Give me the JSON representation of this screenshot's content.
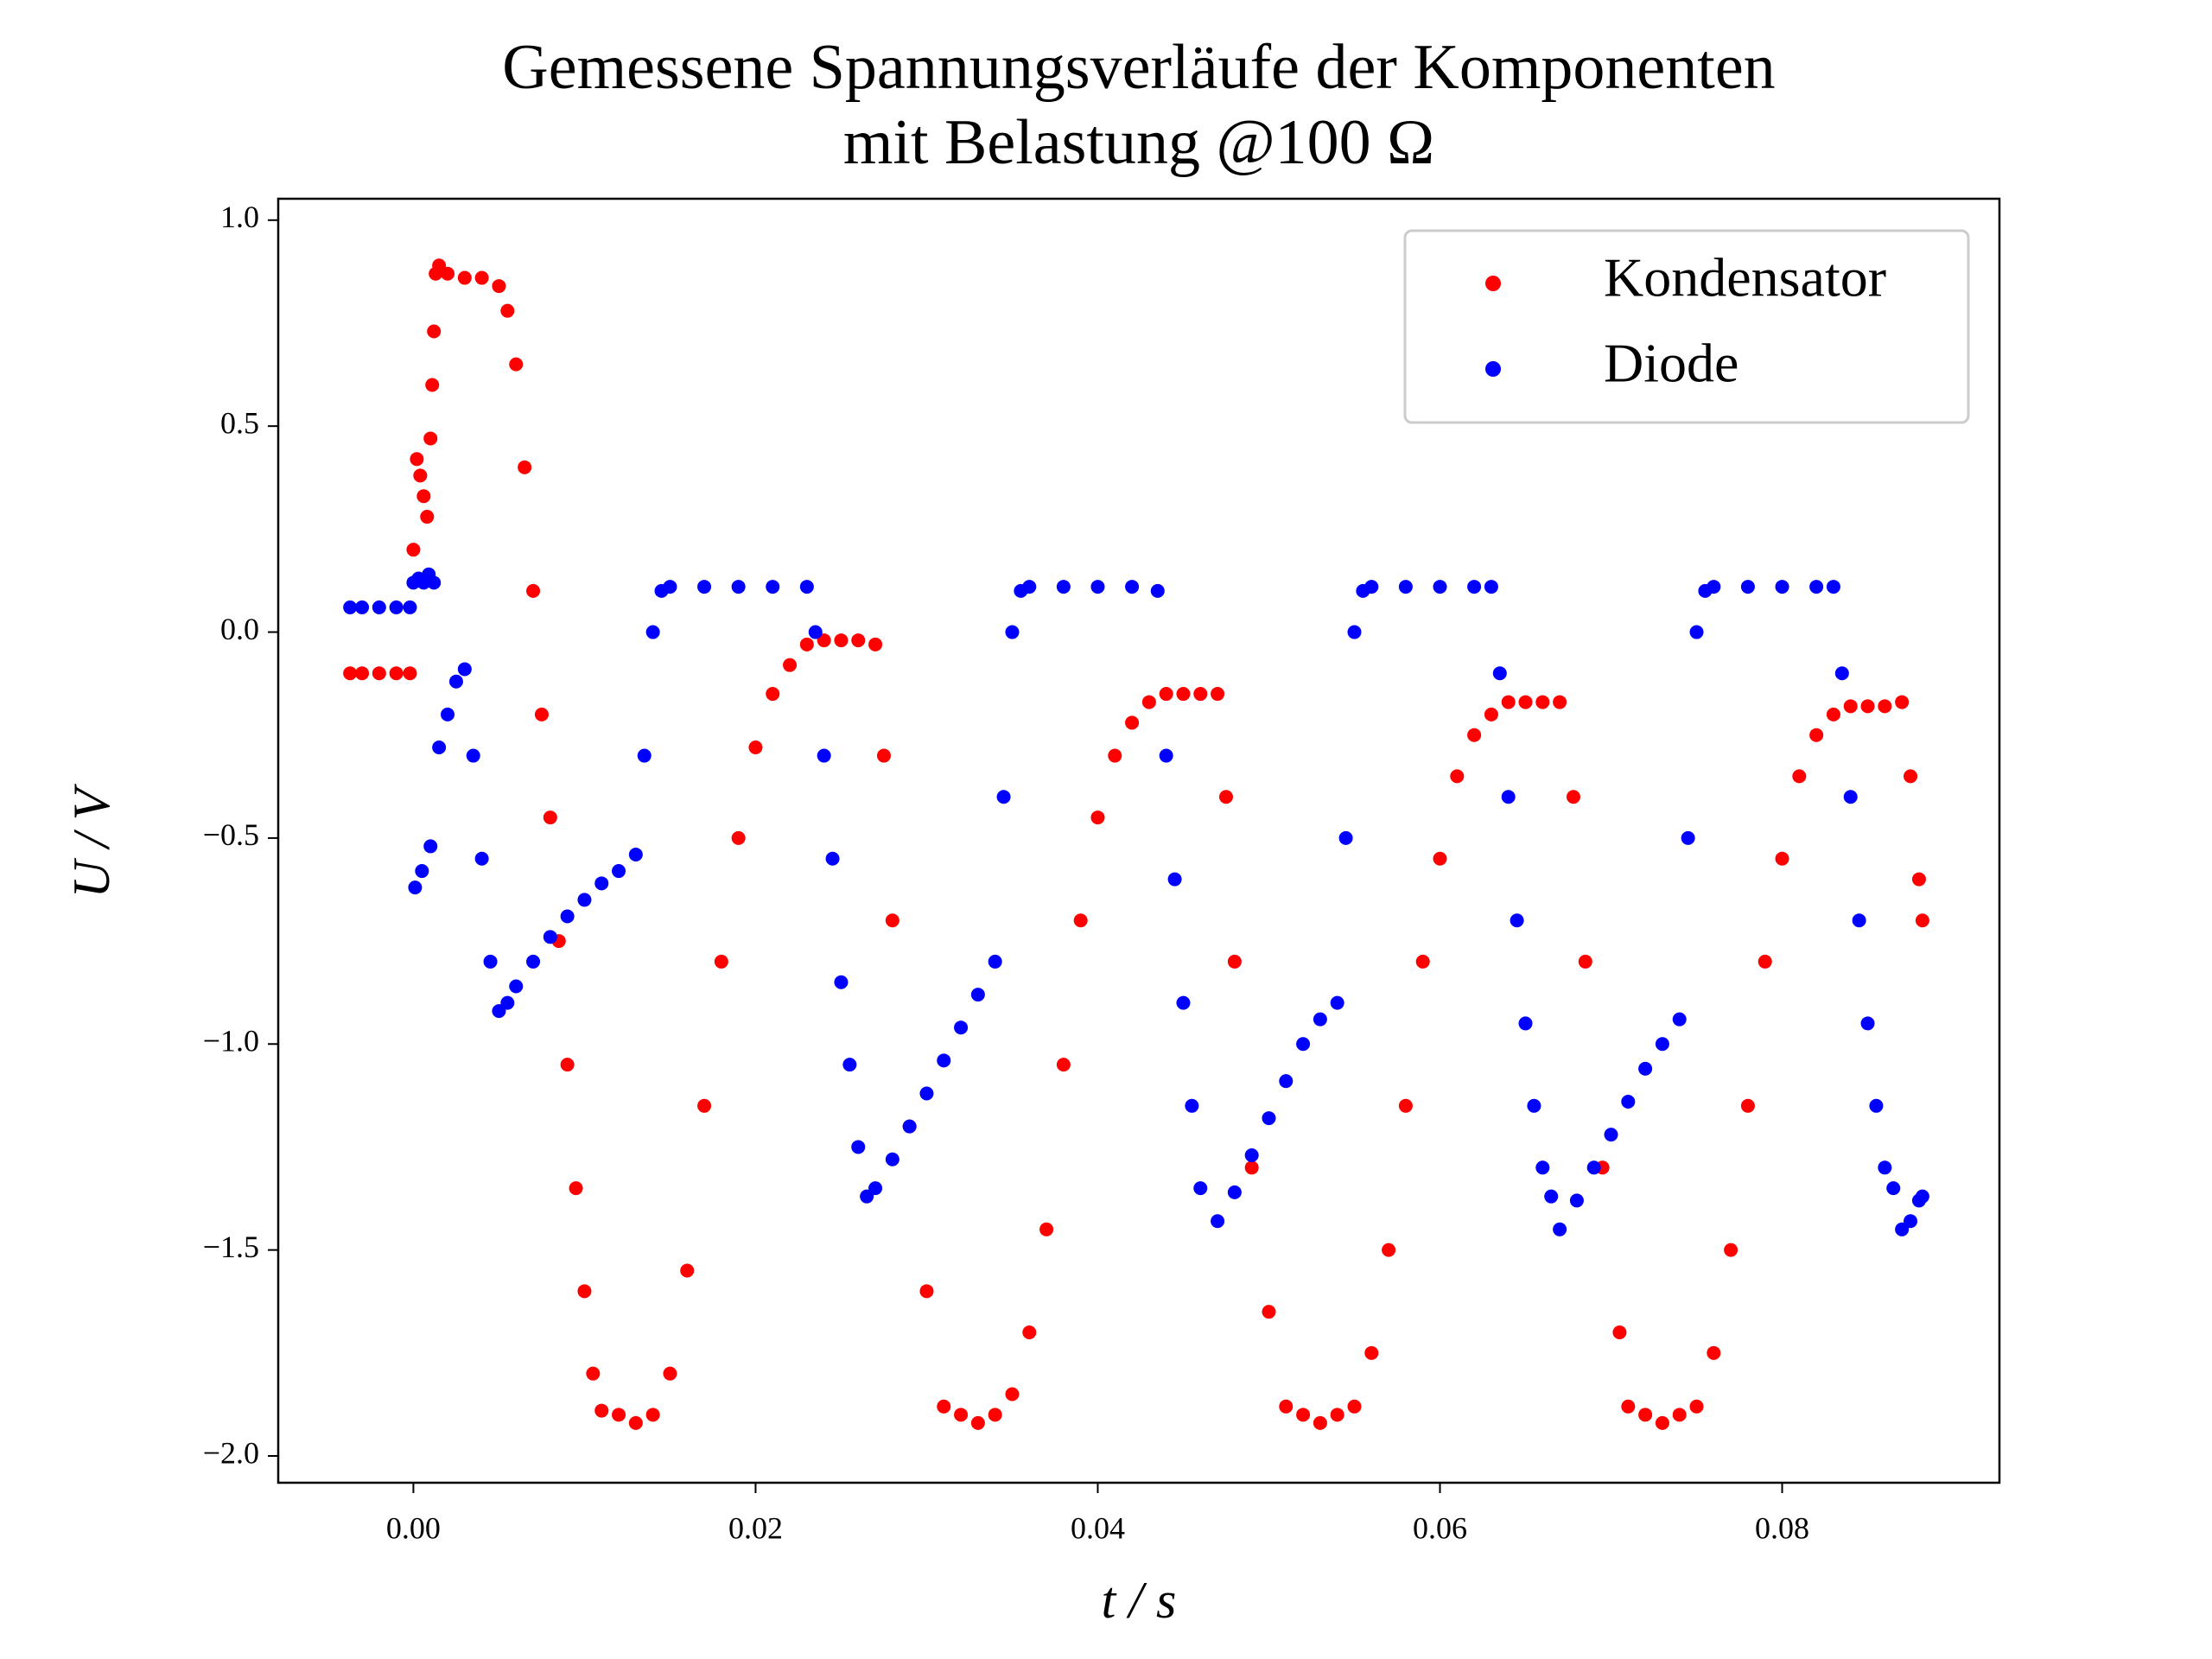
{
  "chart_data": {
    "type": "scatter",
    "title": [
      "Gemessene Spannungsverläufe der Komponenten",
      "mit Belastung @100 Ω"
    ],
    "xlabel": "t / s",
    "ylabel": "U / V",
    "label_color": "#ff0000",
    "xlim": [
      -0.0079,
      0.0927
    ],
    "ylim": [
      -2.065,
      1.052
    ],
    "xticks": [
      {
        "value": 0,
        "label": "0.00"
      },
      0.02,
      0.04,
      0.06,
      0.08
    ],
    "yticks": [
      {
        "value": 1,
        "label": "1.0"
      },
      0.5,
      {
        "value": 0,
        "label": "0.0"
      },
      {
        "value": -0.5,
        "label": "−0.5"
      },
      {
        "value": -1,
        "label": "−1.0"
      },
      {
        "value": -1.5,
        "label": "−1.5"
      },
      {
        "value": -2,
        "label": "−2.0"
      }
    ],
    "grid": false,
    "legend": "upper right",
    "series": [
      {
        "name": "Kondensator",
        "color": "#ff0000",
        "x": [
          -0.0037,
          -0.003,
          -0.002,
          -0.001,
          -0.0002,
          0.0,
          0.0002,
          0.0004,
          0.0006,
          0.0008,
          0.001,
          0.0011,
          0.0012,
          0.0013,
          0.0015,
          0.002,
          0.003,
          0.004,
          0.005,
          0.0055,
          0.006,
          0.0065,
          0.007,
          0.0075,
          0.008,
          0.0085,
          0.009,
          0.0095,
          0.01,
          0.0105,
          0.011,
          0.012,
          0.013,
          0.014,
          0.015,
          0.016,
          0.017,
          0.018,
          0.019,
          0.02,
          0.021,
          0.022,
          0.023,
          0.024,
          0.025,
          0.026,
          0.027,
          0.0275,
          0.028,
          0.029,
          0.03,
          0.031,
          0.032,
          0.033,
          0.034,
          0.035,
          0.036,
          0.037,
          0.038,
          0.039,
          0.04,
          0.041,
          0.042,
          0.043,
          0.044,
          0.045,
          0.046,
          0.047,
          0.0475,
          0.048,
          0.049,
          0.05,
          0.051,
          0.052,
          0.053,
          0.054,
          0.055,
          0.056,
          0.057,
          0.058,
          0.059,
          0.06,
          0.061,
          0.062,
          0.063,
          0.064,
          0.065,
          0.066,
          0.067,
          0.0678,
          0.0685,
          0.0695,
          0.0705,
          0.071,
          0.072,
          0.073,
          0.074,
          0.075,
          0.076,
          0.077,
          0.078,
          0.079,
          0.08,
          0.081,
          0.082,
          0.083,
          0.084,
          0.085,
          0.086,
          0.087,
          0.0875,
          0.088,
          0.0882
        ],
        "values": [
          -0.1,
          -0.1,
          -0.1,
          -0.1,
          -0.1,
          0.2,
          0.42,
          0.38,
          0.33,
          0.28,
          0.47,
          0.6,
          0.73,
          0.87,
          0.89,
          0.87,
          0.86,
          0.86,
          0.84,
          0.78,
          0.65,
          0.4,
          0.1,
          -0.2,
          -0.45,
          -0.75,
          -1.05,
          -1.35,
          -1.6,
          -1.8,
          -1.89,
          -1.9,
          -1.92,
          -1.9,
          -1.8,
          -1.55,
          -1.15,
          -0.8,
          -0.5,
          -0.28,
          -0.15,
          -0.08,
          -0.03,
          -0.02,
          -0.02,
          -0.02,
          -0.03,
          -0.3,
          -0.7,
          -1.2,
          -1.6,
          -1.88,
          -1.9,
          -1.92,
          -1.9,
          -1.85,
          -1.7,
          -1.45,
          -1.05,
          -0.7,
          -0.45,
          -0.3,
          -0.22,
          -0.17,
          -0.15,
          -0.15,
          -0.15,
          -0.15,
          -0.4,
          -0.8,
          -1.3,
          -1.65,
          -1.88,
          -1.9,
          -1.92,
          -1.9,
          -1.88,
          -1.75,
          -1.5,
          -1.15,
          -0.8,
          -0.55,
          -0.35,
          -0.25,
          -0.2,
          -0.17,
          -0.17,
          -0.17,
          -0.17,
          -0.4,
          -0.8,
          -1.3,
          -1.7,
          -1.88,
          -1.9,
          -1.92,
          -1.9,
          -1.88,
          -1.75,
          -1.5,
          -1.15,
          -0.8,
          -0.55,
          -0.35,
          -0.25,
          -0.2,
          -0.18,
          -0.18,
          -0.18,
          -0.17,
          -0.35,
          -0.6,
          -0.7
        ]
      },
      {
        "name": "Diode",
        "color": "#0000ff",
        "x": [
          -0.0037,
          -0.003,
          -0.002,
          -0.001,
          -0.0002,
          0.0,
          0.0003,
          0.0006,
          0.0009,
          0.0012,
          0.0001,
          0.0005,
          0.001,
          0.0015,
          0.002,
          0.0025,
          0.003,
          0.0035,
          0.004,
          0.0045,
          0.005,
          0.0055,
          0.006,
          0.007,
          0.008,
          0.009,
          0.01,
          0.011,
          0.012,
          0.013,
          0.0135,
          0.014,
          0.0145,
          0.015,
          0.017,
          0.019,
          0.021,
          0.023,
          0.0235,
          0.024,
          0.0245,
          0.025,
          0.0255,
          0.026,
          0.0265,
          0.027,
          0.028,
          0.029,
          0.03,
          0.031,
          0.032,
          0.033,
          0.034,
          0.0345,
          0.035,
          0.0355,
          0.036,
          0.038,
          0.04,
          0.042,
          0.0435,
          0.044,
          0.0445,
          0.045,
          0.0455,
          0.046,
          0.047,
          0.048,
          0.049,
          0.05,
          0.051,
          0.052,
          0.053,
          0.054,
          0.0545,
          0.055,
          0.0555,
          0.056,
          0.058,
          0.06,
          0.062,
          0.063,
          0.0635,
          0.064,
          0.0645,
          0.065,
          0.0655,
          0.066,
          0.0665,
          0.067,
          0.068,
          0.069,
          0.07,
          0.071,
          0.072,
          0.073,
          0.074,
          0.0745,
          0.075,
          0.0755,
          0.076,
          0.078,
          0.08,
          0.082,
          0.083,
          0.0835,
          0.084,
          0.0845,
          0.085,
          0.0855,
          0.086,
          0.0865,
          0.087,
          0.0875,
          0.088,
          0.0882
        ],
        "values": [
          0.06,
          0.06,
          0.06,
          0.06,
          0.06,
          0.12,
          0.13,
          0.12,
          0.14,
          0.12,
          -0.62,
          -0.58,
          -0.52,
          -0.28,
          -0.2,
          -0.12,
          -0.09,
          -0.3,
          -0.55,
          -0.8,
          -0.92,
          -0.9,
          -0.86,
          -0.8,
          -0.74,
          -0.69,
          -0.65,
          -0.61,
          -0.58,
          -0.54,
          -0.3,
          0.0,
          0.1,
          0.11,
          0.11,
          0.11,
          0.11,
          0.11,
          0.0,
          -0.3,
          -0.55,
          -0.85,
          -1.05,
          -1.25,
          -1.37,
          -1.35,
          -1.28,
          -1.2,
          -1.12,
          -1.04,
          -0.96,
          -0.88,
          -0.8,
          -0.4,
          0.0,
          0.1,
          0.11,
          0.11,
          0.11,
          0.11,
          0.1,
          -0.3,
          -0.6,
          -0.9,
          -1.15,
          -1.35,
          -1.43,
          -1.36,
          -1.27,
          -1.18,
          -1.09,
          -1.0,
          -0.94,
          -0.9,
          -0.5,
          0.0,
          0.1,
          0.11,
          0.11,
          0.11,
          0.11,
          0.11,
          -0.1,
          -0.4,
          -0.7,
          -0.95,
          -1.15,
          -1.3,
          -1.37,
          -1.45,
          -1.38,
          -1.3,
          -1.22,
          -1.14,
          -1.06,
          -1.0,
          -0.94,
          -0.5,
          0.0,
          0.1,
          0.11,
          0.11,
          0.11,
          0.11,
          0.11,
          -0.1,
          -0.4,
          -0.7,
          -0.95,
          -1.15,
          -1.3,
          -1.35,
          -1.45,
          -1.43,
          -1.38,
          -1.37
        ]
      }
    ]
  }
}
